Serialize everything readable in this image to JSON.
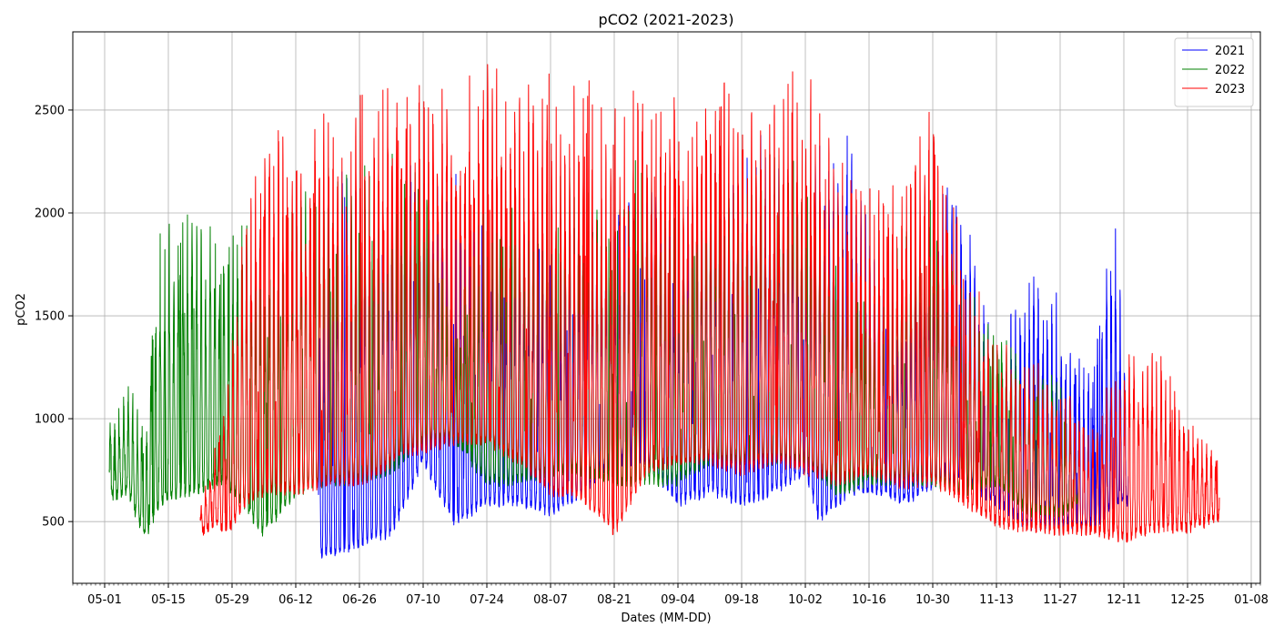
{
  "chart_data": {
    "type": "line",
    "title": "pCO2 (2021-2023)",
    "xlabel": "Dates (MM-DD)",
    "ylabel": "pCO2",
    "xlim": [
      "04-24",
      "01-10"
    ],
    "ylim": [
      200,
      2880
    ],
    "grid": true,
    "legend": "top-right",
    "x_ticks": [
      "05-01",
      "05-15",
      "05-29",
      "06-12",
      "06-26",
      "07-10",
      "07-24",
      "08-07",
      "08-21",
      "09-04",
      "09-18",
      "10-02",
      "10-16",
      "10-30",
      "11-13",
      "11-27",
      "12-11",
      "12-25",
      "01-08"
    ],
    "y_ticks": [
      500,
      1000,
      1500,
      2000,
      2500
    ],
    "series": [
      {
        "name": "2021",
        "color": "#0000ff",
        "x_start": "06-17",
        "x_end": "12-12",
        "envelope": [
          [
            "06-17",
            1500,
            350
          ],
          [
            "06-22",
            2300,
            350
          ],
          [
            "06-26",
            2200,
            400
          ],
          [
            "07-03",
            2300,
            450
          ],
          [
            "07-10",
            2350,
            800
          ],
          [
            "07-17",
            2200,
            500
          ],
          [
            "07-24",
            2000,
            600
          ],
          [
            "07-31",
            2000,
            600
          ],
          [
            "08-07",
            2000,
            550
          ],
          [
            "08-14",
            2100,
            650
          ],
          [
            "08-21",
            2000,
            800
          ],
          [
            "08-28",
            2300,
            800
          ],
          [
            "09-04",
            2000,
            600
          ],
          [
            "09-11",
            2300,
            650
          ],
          [
            "09-18",
            2400,
            600
          ],
          [
            "09-25",
            2400,
            650
          ],
          [
            "10-02",
            2000,
            750
          ],
          [
            "10-05",
            2400,
            520
          ],
          [
            "10-12",
            2400,
            650
          ],
          [
            "10-19",
            1800,
            650
          ],
          [
            "10-24",
            1500,
            600
          ],
          [
            "10-31",
            2200,
            700
          ],
          [
            "11-06",
            2100,
            700
          ],
          [
            "11-13",
            1300,
            600
          ],
          [
            "11-20",
            1800,
            480
          ],
          [
            "11-27",
            1600,
            500
          ],
          [
            "12-04",
            1200,
            470
          ],
          [
            "12-09",
            2100,
            600
          ],
          [
            "12-12",
            1000,
            600
          ]
        ]
      },
      {
        "name": "2022",
        "color": "#008000",
        "x_start": "05-02",
        "x_end": "12-01",
        "envelope": [
          [
            "05-02",
            1000,
            620
          ],
          [
            "05-06",
            1200,
            650
          ],
          [
            "05-10",
            1000,
            420
          ],
          [
            "05-13",
            1900,
            600
          ],
          [
            "05-20",
            2100,
            650
          ],
          [
            "05-27",
            1900,
            700
          ],
          [
            "05-31",
            2150,
            600
          ],
          [
            "06-05",
            1800,
            450
          ],
          [
            "06-12",
            2250,
            650
          ],
          [
            "06-19",
            2250,
            700
          ],
          [
            "06-26",
            2250,
            700
          ],
          [
            "07-03",
            2300,
            750
          ],
          [
            "07-10",
            2250,
            900
          ],
          [
            "07-17",
            1400,
            900
          ],
          [
            "07-24",
            2250,
            700
          ],
          [
            "07-31",
            2250,
            700
          ],
          [
            "08-07",
            2200,
            750
          ],
          [
            "08-14",
            2300,
            750
          ],
          [
            "08-21",
            2200,
            700
          ],
          [
            "08-28",
            2300,
            700
          ],
          [
            "09-04",
            2000,
            700
          ],
          [
            "09-11",
            2200,
            800
          ],
          [
            "09-18",
            2250,
            800
          ],
          [
            "09-25",
            2350,
            800
          ],
          [
            "10-02",
            2250,
            800
          ],
          [
            "10-09",
            2050,
            650
          ],
          [
            "10-16",
            1500,
            700
          ],
          [
            "10-23",
            2000,
            700
          ],
          [
            "10-30",
            2150,
            700
          ],
          [
            "11-06",
            1650,
            650
          ],
          [
            "11-13",
            1550,
            700
          ],
          [
            "11-20",
            1300,
            550
          ],
          [
            "11-27",
            1200,
            550
          ],
          [
            "12-01",
            900,
            600
          ]
        ]
      },
      {
        "name": "2023",
        "color": "#ff0000",
        "x_start": "05-22",
        "x_end": "01-01",
        "envelope": [
          [
            "05-22",
            550,
            460
          ],
          [
            "05-26",
            1000,
            480
          ],
          [
            "05-29",
            1400,
            480
          ],
          [
            "06-01",
            2100,
            600
          ],
          [
            "06-05",
            2500,
            650
          ],
          [
            "06-12",
            2400,
            650
          ],
          [
            "06-17",
            2600,
            680
          ],
          [
            "06-22",
            2500,
            700
          ],
          [
            "06-26",
            2600,
            700
          ],
          [
            "07-01",
            2650,
            750
          ],
          [
            "07-06",
            2650,
            850
          ],
          [
            "07-10",
            2700,
            850
          ],
          [
            "07-17",
            2700,
            900
          ],
          [
            "07-24",
            2750,
            900
          ],
          [
            "07-31",
            2700,
            800
          ],
          [
            "08-07",
            2700,
            650
          ],
          [
            "08-14",
            2700,
            620
          ],
          [
            "08-21",
            2500,
            450
          ],
          [
            "08-28",
            2700,
            750
          ],
          [
            "09-04",
            2600,
            800
          ],
          [
            "09-11",
            2700,
            800
          ],
          [
            "09-18",
            2600,
            750
          ],
          [
            "09-25",
            2600,
            800
          ],
          [
            "10-02",
            2750,
            750
          ],
          [
            "10-09",
            2300,
            700
          ],
          [
            "10-16",
            2200,
            750
          ],
          [
            "10-23",
            2200,
            680
          ],
          [
            "10-30",
            2720,
            700
          ],
          [
            "11-06",
            1800,
            600
          ],
          [
            "11-13",
            1400,
            500
          ],
          [
            "11-20",
            1300,
            470
          ],
          [
            "11-27",
            1200,
            460
          ],
          [
            "12-04",
            950,
            460
          ],
          [
            "12-11",
            1400,
            420
          ],
          [
            "12-18",
            1380,
            470
          ],
          [
            "12-25",
            1000,
            470
          ],
          [
            "01-01",
            850,
            520
          ]
        ]
      }
    ]
  }
}
